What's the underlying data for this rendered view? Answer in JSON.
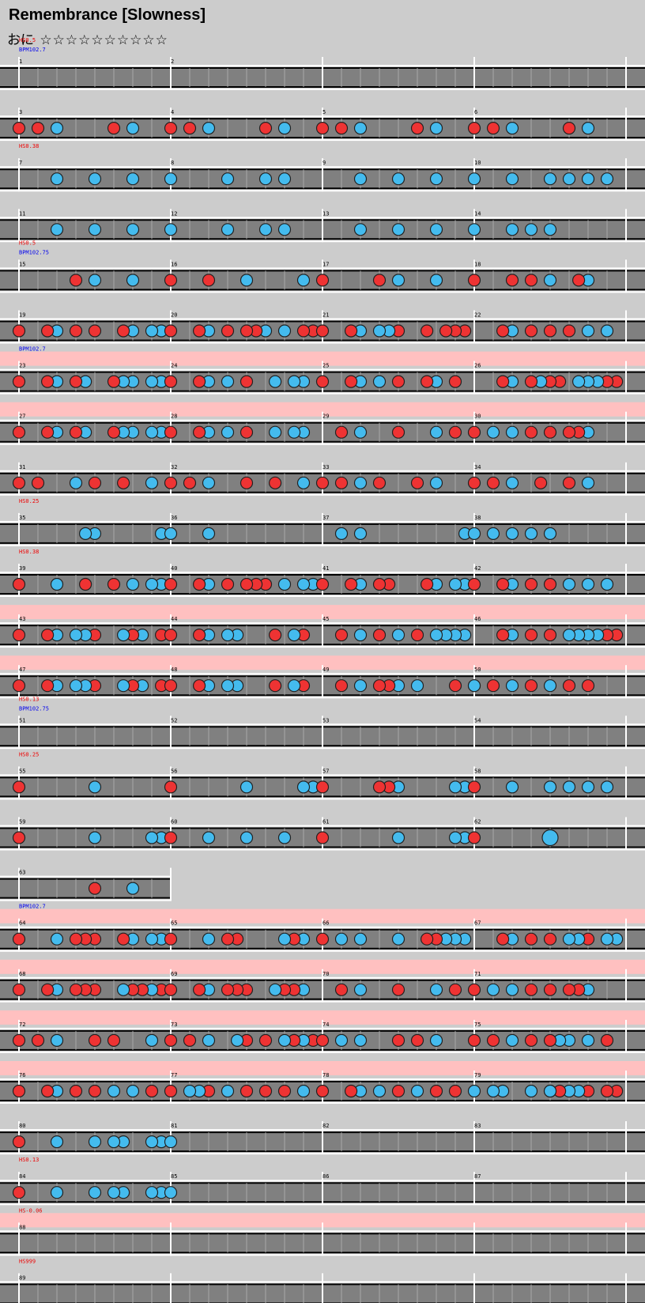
{
  "title": "Remembrance [Slowness]",
  "difficulty": {
    "label": "おに",
    "stars": "☆☆☆☆☆☆☆☆☆☆"
  },
  "colors": {
    "background": "#cccccc",
    "lane": "#808080",
    "lane_line": "#ffffff",
    "pink_band": "#ffc0c0",
    "don": "#ee3333",
    "ka": "#44bbee",
    "hs_text": "#ee0000",
    "bpm_text": "#0000ee",
    "measure_num": "#000000"
  },
  "rows": [
    {
      "measures": [
        {
          "n": "1",
          "don": [],
          "ka": []
        },
        {
          "n": "2",
          "don": [],
          "ka": []
        }
      ],
      "hs": "HS0.5",
      "bpm": "BPM102.7"
    },
    {
      "measures": [
        {
          "n": "3",
          "don": [
            0.0,
            0.125,
            0.625
          ],
          "ka": [
            0.25,
            0.75
          ]
        },
        {
          "n": "4",
          "don": [
            0.0,
            0.125,
            0.625
          ],
          "ka": [
            0.25,
            0.75
          ]
        },
        {
          "n": "5",
          "don": [
            0.0,
            0.125,
            0.625
          ],
          "ka": [
            0.25,
            0.75
          ]
        },
        {
          "n": "6",
          "don": [
            0.0,
            0.125,
            0.625
          ],
          "ka": [
            0.25,
            0.75
          ]
        }
      ]
    },
    {
      "measures": [
        {
          "n": "7",
          "don": [],
          "ka": [
            0.25,
            0.5,
            0.75
          ]
        },
        {
          "n": "8",
          "don": [],
          "ka": [
            0.0,
            0.375,
            0.625,
            0.75
          ]
        },
        {
          "n": "9",
          "don": [],
          "ka": [
            0.25,
            0.5,
            0.75
          ]
        },
        {
          "n": "10",
          "don": [],
          "ka": [
            0.0,
            0.25,
            0.5,
            0.625,
            0.75,
            0.875
          ]
        }
      ],
      "hs": "HS0.38"
    },
    {
      "measures": [
        {
          "n": "11",
          "don": [],
          "ka": [
            0.25,
            0.5,
            0.75
          ]
        },
        {
          "n": "12",
          "don": [],
          "ka": [
            0.0,
            0.375,
            0.625,
            0.75
          ]
        },
        {
          "n": "13",
          "don": [],
          "ka": [
            0.25,
            0.5,
            0.75
          ]
        },
        {
          "n": "14",
          "don": [],
          "ka": [
            0.0,
            0.25,
            0.375,
            0.5
          ]
        }
      ]
    },
    {
      "measures": [
        {
          "n": "15",
          "don": [
            0.375
          ],
          "ka": [
            0.5,
            0.75
          ]
        },
        {
          "n": "16",
          "don": [
            0.0,
            0.25
          ],
          "ka": [
            0.5,
            0.875
          ]
        },
        {
          "n": "17",
          "don": [
            0.0,
            0.375
          ],
          "ka": [
            0.5,
            0.75
          ]
        },
        {
          "n": "18",
          "don": [
            0.0,
            0.25,
            0.375,
            0.688
          ],
          "ka": [
            0.5,
            0.75
          ]
        }
      ],
      "hs": "HS0.5",
      "bpm": "BPM102.75"
    },
    {
      "measures": [
        {
          "n": "19",
          "don": [
            0.0,
            0.188,
            0.375,
            0.5,
            0.688
          ],
          "ka": [
            0.25,
            0.75,
            0.875,
            0.938
          ]
        },
        {
          "n": "20",
          "don": [
            0.0,
            0.188,
            0.375,
            0.5,
            0.563,
            0.875,
            0.938
          ],
          "ka": [
            0.25,
            0.625,
            0.75
          ]
        },
        {
          "n": "21",
          "don": [
            0.0,
            0.188,
            0.5,
            0.688,
            0.813,
            0.875,
            0.938
          ],
          "ka": [
            0.25,
            0.375,
            0.438
          ]
        },
        {
          "n": "22",
          "don": [
            0.188,
            0.375,
            0.5,
            0.625
          ],
          "ka": [
            0.25,
            0.75,
            0.875
          ]
        }
      ]
    },
    {
      "measures": [
        {
          "n": "23",
          "don": [
            0.0,
            0.188,
            0.375,
            0.625
          ],
          "ka": [
            0.25,
            0.438,
            0.688,
            0.75,
            0.875,
            0.938
          ]
        },
        {
          "n": "24",
          "don": [
            0.0,
            0.188,
            0.5
          ],
          "ka": [
            0.25,
            0.375,
            0.688,
            0.813,
            0.875
          ]
        },
        {
          "n": "25",
          "don": [
            0.0,
            0.188,
            0.5,
            0.688,
            0.875
          ],
          "ka": [
            0.25,
            0.375,
            0.75
          ]
        },
        {
          "n": "26",
          "don": [
            0.188,
            0.375,
            0.5,
            0.563,
            0.875,
            0.938
          ],
          "ka": [
            0.25,
            0.438,
            0.688,
            0.75,
            0.813
          ]
        }
      ],
      "pink": true,
      "bpm": "BPM102.7"
    },
    {
      "measures": [
        {
          "n": "27",
          "don": [
            0.0,
            0.188,
            0.375,
            0.625
          ],
          "ka": [
            0.25,
            0.438,
            0.688,
            0.75,
            0.875,
            0.938
          ]
        },
        {
          "n": "28",
          "don": [
            0.0,
            0.188,
            0.5
          ],
          "ka": [
            0.25,
            0.375,
            0.688,
            0.813,
            0.875
          ]
        },
        {
          "n": "29",
          "don": [
            0.125,
            0.5,
            0.875
          ],
          "ka": [
            0.25,
            0.75
          ]
        },
        {
          "n": "30",
          "don": [
            0.0,
            0.375,
            0.5,
            0.625,
            0.688
          ],
          "ka": [
            0.125,
            0.25,
            0.75
          ]
        }
      ],
      "pink": true
    },
    {
      "measures": [
        {
          "n": "31",
          "don": [
            0.0,
            0.125,
            0.5,
            0.688
          ],
          "ka": [
            0.375,
            0.875
          ]
        },
        {
          "n": "32",
          "don": [
            0.0,
            0.125,
            0.5,
            0.688
          ],
          "ka": [
            0.25,
            0.875
          ]
        },
        {
          "n": "33",
          "don": [
            0.0,
            0.125,
            0.375,
            0.625
          ],
          "ka": [
            0.25,
            0.75
          ]
        },
        {
          "n": "34",
          "don": [
            0.0,
            0.125,
            0.438,
            0.625
          ],
          "ka": [
            0.25,
            0.75
          ]
        }
      ]
    },
    {
      "measures": [
        {
          "n": "35",
          "don": [],
          "ka": [
            0.438,
            0.5,
            0.938
          ]
        },
        {
          "n": "36",
          "don": [],
          "ka": [
            0.0,
            0.25
          ]
        },
        {
          "n": "37",
          "don": [],
          "ka": [
            0.125,
            0.25,
            0.938
          ]
        },
        {
          "n": "38",
          "don": [],
          "ka": [
            0.0,
            0.125,
            0.25,
            0.375,
            0.5
          ]
        }
      ],
      "hs": "HS0.25"
    },
    {
      "measures": [
        {
          "n": "39",
          "don": [
            0.0,
            0.438,
            0.625
          ],
          "ka": [
            0.25,
            0.75,
            0.875,
            0.938
          ]
        },
        {
          "n": "40",
          "don": [
            0.0,
            0.188,
            0.375,
            0.5,
            0.563,
            0.625
          ],
          "ka": [
            0.25,
            0.75,
            0.875,
            0.938
          ]
        },
        {
          "n": "41",
          "don": [
            0.0,
            0.188,
            0.375,
            0.438,
            0.688
          ],
          "ka": [
            0.25,
            0.75,
            0.875,
            0.938
          ]
        },
        {
          "n": "42",
          "don": [
            0.0,
            0.188,
            0.375,
            0.5
          ],
          "ka": [
            0.25,
            0.625,
            0.75,
            0.875
          ]
        }
      ],
      "hs": "HS0.38"
    },
    {
      "measures": [
        {
          "n": "43",
          "don": [
            0.0,
            0.188,
            0.5,
            0.75,
            0.938
          ],
          "ka": [
            0.25,
            0.375,
            0.438,
            0.688,
            0.813
          ]
        },
        {
          "n": "44",
          "don": [
            0.0,
            0.188,
            0.688,
            0.875
          ],
          "ka": [
            0.25,
            0.375,
            0.438,
            0.813
          ]
        },
        {
          "n": "45",
          "don": [
            0.125,
            0.375,
            0.625
          ],
          "ka": [
            0.25,
            0.5,
            0.75,
            0.813,
            0.875,
            0.938
          ]
        },
        {
          "n": "46",
          "don": [
            0.188,
            0.375,
            0.5,
            0.875,
            0.938
          ],
          "ka": [
            0.25,
            0.625,
            0.688,
            0.75,
            0.813
          ]
        }
      ],
      "pink": true
    },
    {
      "measures": [
        {
          "n": "47",
          "don": [
            0.0,
            0.188,
            0.5,
            0.75,
            0.938
          ],
          "ka": [
            0.25,
            0.375,
            0.438,
            0.688,
            0.813
          ]
        },
        {
          "n": "48",
          "don": [
            0.0,
            0.188,
            0.688,
            0.875
          ],
          "ka": [
            0.25,
            0.375,
            0.438,
            0.813
          ]
        },
        {
          "n": "49",
          "don": [
            0.125,
            0.375,
            0.438,
            0.875
          ],
          "ka": [
            0.25,
            0.5,
            0.625,
            1.0
          ]
        },
        {
          "n": "50",
          "don": [
            0.125,
            0.375,
            0.625,
            0.75
          ],
          "ka": [
            0.0,
            0.25,
            0.5
          ]
        }
      ],
      "pink": true
    },
    {
      "measures": [
        {
          "n": "51",
          "don": [],
          "ka": []
        },
        {
          "n": "52",
          "don": [],
          "ka": []
        },
        {
          "n": "53",
          "don": [],
          "ka": []
        },
        {
          "n": "54",
          "don": [],
          "ka": []
        }
      ],
      "hs": "HS0.13",
      "bpm": "BPM102.75"
    },
    {
      "measures": [
        {
          "n": "55",
          "don": [
            0.0
          ],
          "ka": [
            0.5
          ]
        },
        {
          "n": "56",
          "don": [
            0.0
          ],
          "ka": [
            0.5,
            0.875,
            0.938
          ]
        },
        {
          "n": "57",
          "don": [
            0.0,
            0.375,
            0.438
          ],
          "ka": [
            0.5,
            0.875,
            0.938
          ]
        },
        {
          "n": "58",
          "don": [
            0.0
          ],
          "ka": [
            0.25,
            0.5,
            0.625,
            0.75,
            0.875
          ]
        }
      ],
      "hs": "HS0.25"
    },
    {
      "measures": [
        {
          "n": "59",
          "don": [
            0.0
          ],
          "ka": [
            0.5,
            0.875,
            0.938
          ]
        },
        {
          "n": "60",
          "don": [
            0.0
          ],
          "ka": [
            0.25,
            0.5,
            0.75
          ]
        },
        {
          "n": "61",
          "don": [
            0.0
          ],
          "ka": [
            0.5,
            0.875,
            0.938
          ]
        },
        {
          "n": "62",
          "don": [
            0.0
          ],
          "ka": [],
          "big_ka": [
            0.5
          ]
        }
      ]
    },
    {
      "measures": [
        {
          "n": "63",
          "don": [
            0.5
          ],
          "ka": [
            0.75
          ]
        }
      ],
      "partial": true
    },
    {
      "measures": [
        {
          "n": "64",
          "don": [
            0.0,
            0.375,
            0.438,
            0.5,
            0.688
          ],
          "ka": [
            0.25,
            0.75,
            0.875,
            0.938
          ]
        },
        {
          "n": "65",
          "don": [
            0.0,
            0.375,
            0.438,
            0.813
          ],
          "ka": [
            0.25,
            0.75,
            0.875
          ]
        },
        {
          "n": "66",
          "don": [
            0.0,
            0.688,
            0.75
          ],
          "ka": [
            0.125,
            0.25,
            0.5,
            0.813,
            0.875,
            0.938
          ]
        },
        {
          "n": "67",
          "don": [
            0.188,
            0.375,
            0.5,
            0.75
          ],
          "ka": [
            0.25,
            0.625,
            0.688,
            0.875,
            0.938
          ]
        }
      ],
      "pink": true,
      "bpm": "BPM102.7"
    },
    {
      "measures": [
        {
          "n": "68",
          "don": [
            0.0,
            0.188,
            0.375,
            0.438,
            0.5,
            0.75,
            0.813,
            0.938
          ],
          "ka": [
            0.25,
            0.688,
            0.875
          ]
        },
        {
          "n": "69",
          "don": [
            0.0,
            0.188,
            0.375,
            0.438,
            0.5,
            0.75,
            0.813
          ],
          "ka": [
            0.25,
            0.688,
            0.875
          ]
        },
        {
          "n": "70",
          "don": [
            0.125,
            0.5,
            0.875
          ],
          "ka": [
            0.25,
            0.75
          ]
        },
        {
          "n": "71",
          "don": [
            0.0,
            0.375,
            0.5,
            0.625,
            0.688
          ],
          "ka": [
            0.125,
            0.25,
            0.75
          ]
        }
      ],
      "pink": true
    },
    {
      "measures": [
        {
          "n": "72",
          "don": [
            0.0,
            0.125,
            0.5,
            0.625
          ],
          "ka": [
            0.25,
            0.875
          ]
        },
        {
          "n": "73",
          "don": [
            0.0,
            0.125,
            0.5,
            0.625,
            0.813,
            0.938
          ],
          "ka": [
            0.25,
            0.438,
            0.75,
            0.875
          ]
        },
        {
          "n": "74",
          "don": [
            0.0,
            0.5,
            0.625
          ],
          "ka": [
            0.125,
            0.25,
            0.75
          ]
        },
        {
          "n": "75",
          "don": [
            0.0,
            0.125,
            0.375,
            0.5,
            0.875
          ],
          "ka": [
            0.25,
            0.563,
            0.625,
            0.75
          ]
        }
      ],
      "pink": true
    },
    {
      "measures": [
        {
          "n": "76",
          "don": [
            0.0,
            0.188,
            0.375,
            0.5,
            0.875
          ],
          "ka": [
            0.25,
            0.625,
            0.75
          ]
        },
        {
          "n": "77",
          "don": [
            0.0,
            0.25,
            0.5,
            0.625,
            0.75
          ],
          "ka": [
            0.125,
            0.188,
            0.375,
            0.875
          ]
        },
        {
          "n": "78",
          "don": [
            0.0,
            0.188,
            0.5,
            0.75,
            0.875
          ],
          "ka": [
            0.25,
            0.375,
            0.625
          ]
        },
        {
          "n": "79",
          "don": [
            0.5,
            0.563,
            0.75,
            0.875,
            0.938
          ],
          "ka": [
            0.0,
            0.125,
            0.188,
            0.375,
            0.5,
            0.625,
            0.688
          ]
        }
      ],
      "pink": true
    },
    {
      "measures": [
        {
          "n": "80",
          "don": [
            0.0
          ],
          "ka": [
            0.25,
            0.5,
            0.625,
            0.688,
            0.875,
            0.938
          ]
        },
        {
          "n": "81",
          "don": [],
          "ka": [
            0.0
          ]
        },
        {
          "n": "82",
          "don": [],
          "ka": []
        },
        {
          "n": "83",
          "don": [],
          "ka": []
        }
      ]
    },
    {
      "measures": [
        {
          "n": "84",
          "don": [
            0.0
          ],
          "ka": [
            0.25,
            0.5,
            0.625,
            0.688,
            0.875,
            0.938
          ]
        },
        {
          "n": "85",
          "don": [],
          "ka": [
            0.0
          ]
        },
        {
          "n": "86",
          "don": [],
          "ka": []
        },
        {
          "n": "87",
          "don": [],
          "ka": []
        }
      ],
      "hs": "HS0.13"
    },
    {
      "measures": [
        {
          "n": "88",
          "don": [],
          "ka": []
        }
      ],
      "pink": true,
      "hs": "HS-0.06",
      "full": true
    },
    {
      "measures": [
        {
          "n": "89",
          "don": [],
          "ka": []
        }
      ],
      "hs": "HS999",
      "full": true
    }
  ]
}
